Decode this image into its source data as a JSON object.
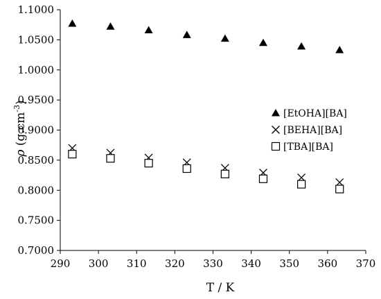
{
  "chart_data": {
    "type": "scatter",
    "xlabel": "T / K",
    "ylabel": {
      "symbol": "ρ",
      "unit_prefix": " (g.cm",
      "unit_exp": "-3",
      "unit_suffix": ")"
    },
    "xlim": [
      290,
      370
    ],
    "ylim": [
      0.7,
      1.1
    ],
    "x_ticks": [
      "290",
      "300",
      "310",
      "320",
      "330",
      "340",
      "350",
      "360",
      "370"
    ],
    "y_ticks": [
      "0.7000",
      "0.7500",
      "0.8000",
      "0.8500",
      "0.9000",
      "0.9500",
      "1.0000",
      "1.0500",
      "1.1000"
    ],
    "grid": false,
    "legend_position": "right",
    "x": [
      293.15,
      303.15,
      313.15,
      323.15,
      333.15,
      343.15,
      353.15,
      363.15
    ],
    "series": [
      {
        "name": "[EtOHA][BA]",
        "marker": "filled-triangle",
        "values": [
          1.077,
          1.072,
          1.066,
          1.058,
          1.052,
          1.045,
          1.039,
          1.033
        ]
      },
      {
        "name": "[BEHA][BA]",
        "marker": "cross",
        "values": [
          0.87,
          0.862,
          0.854,
          0.846,
          0.837,
          0.829,
          0.821,
          0.813
        ]
      },
      {
        "name": "[TBA][BA]",
        "marker": "open-square",
        "values": [
          0.86,
          0.853,
          0.845,
          0.836,
          0.827,
          0.819,
          0.81,
          0.802
        ]
      }
    ],
    "colors": {
      "markers": "#000000",
      "axes": "#000000"
    }
  }
}
